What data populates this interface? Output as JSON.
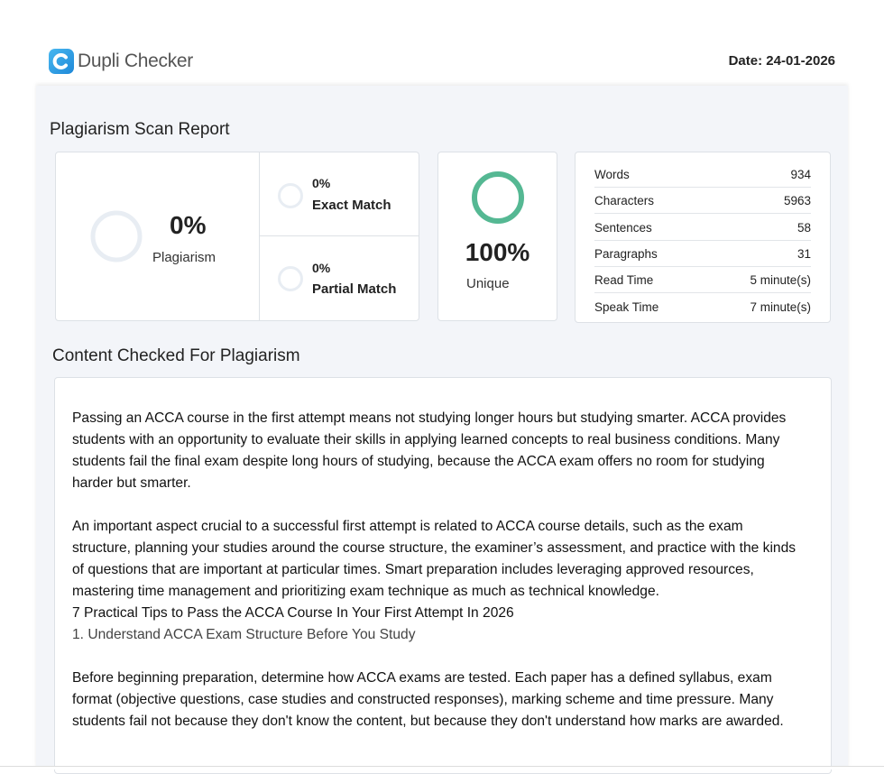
{
  "header": {
    "logo": "Dupli Checker",
    "date": "Date: 24-01-2026"
  },
  "report": {
    "title": "Plagiarism Scan Report",
    "plagiarism": {
      "value": "0%",
      "label": "Plagiarism"
    },
    "exact_match": {
      "value": "0%",
      "label": "Exact Match"
    },
    "partial_match": {
      "value": "0%",
      "label": "Partial Match"
    },
    "unique": {
      "value": "100%",
      "label": "Unique"
    },
    "stats": [
      [
        "Words",
        "934"
      ],
      [
        "Characters",
        "5963"
      ],
      [
        "Sentences",
        "58"
      ],
      [
        "Paragraphs",
        "31"
      ],
      [
        "Read Time",
        "5 minute(s)"
      ],
      [
        "Speak Time",
        "7 minute(s)"
      ]
    ]
  },
  "content": {
    "title": "Content Checked For Plagiarism",
    "blocks": [
      "Passing an ACCA course in the first attempt means not studying longer hours but studying smarter. ACCA provides students with an opportunity to evaluate their skills in applying learned concepts to real business conditions. Many students fail the final exam despite long hours of studying, because the ACCA exam offers no room for studying harder but smarter.",
      "An important aspect crucial to a successful first attempt is related to ACCA course details, such as the exam structure, planning your studies around the course structure, the examiner’s assessment, and practice with the kinds of questions that are important at particular times. Smart preparation includes leveraging approved resources, mastering time management and prioritizing exam technique as much as technical knowledge.",
      "7 Practical Tips to Pass the ACCA Course In Your First Attempt In 2026",
      "1. Understand ACCA Exam Structure Before You Study",
      "Before beginning preparation, determine how ACCA exams are tested. Each paper has a defined syllabus, exam format (objective questions, case studies and constructed responses), marking scheme and time pressure. Many students fail not because they don't know the content, but because they don't understand how marks are awarded."
    ]
  }
}
